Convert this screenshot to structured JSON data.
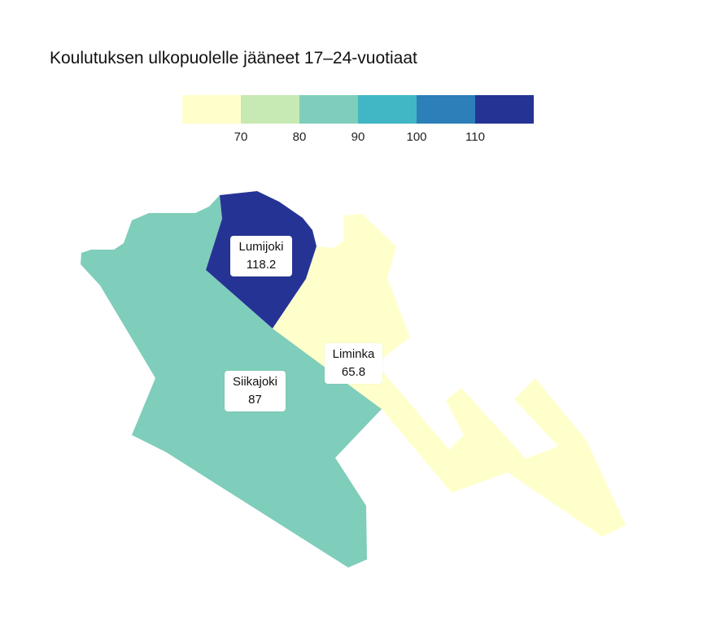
{
  "title": "Koulutuksen ulkopuolelle jääneet 17–24-vuotiaat",
  "legend": {
    "bins": [
      {
        "upper": 70,
        "color": "#ffffcc"
      },
      {
        "upper": 80,
        "color": "#c7e9b4"
      },
      {
        "upper": 90,
        "color": "#7fcdbb"
      },
      {
        "upper": 100,
        "color": "#41b6c4"
      },
      {
        "upper": 110,
        "color": "#2c7fb8"
      },
      {
        "upper": null,
        "color": "#253494"
      }
    ],
    "ticks": [
      "70",
      "80",
      "90",
      "100",
      "110"
    ]
  },
  "regions": [
    {
      "name": "Siikajoki",
      "value": "87"
    },
    {
      "name": "Lumijoki",
      "value": "118.2"
    },
    {
      "name": "Liminka",
      "value": "65.8"
    }
  ]
}
